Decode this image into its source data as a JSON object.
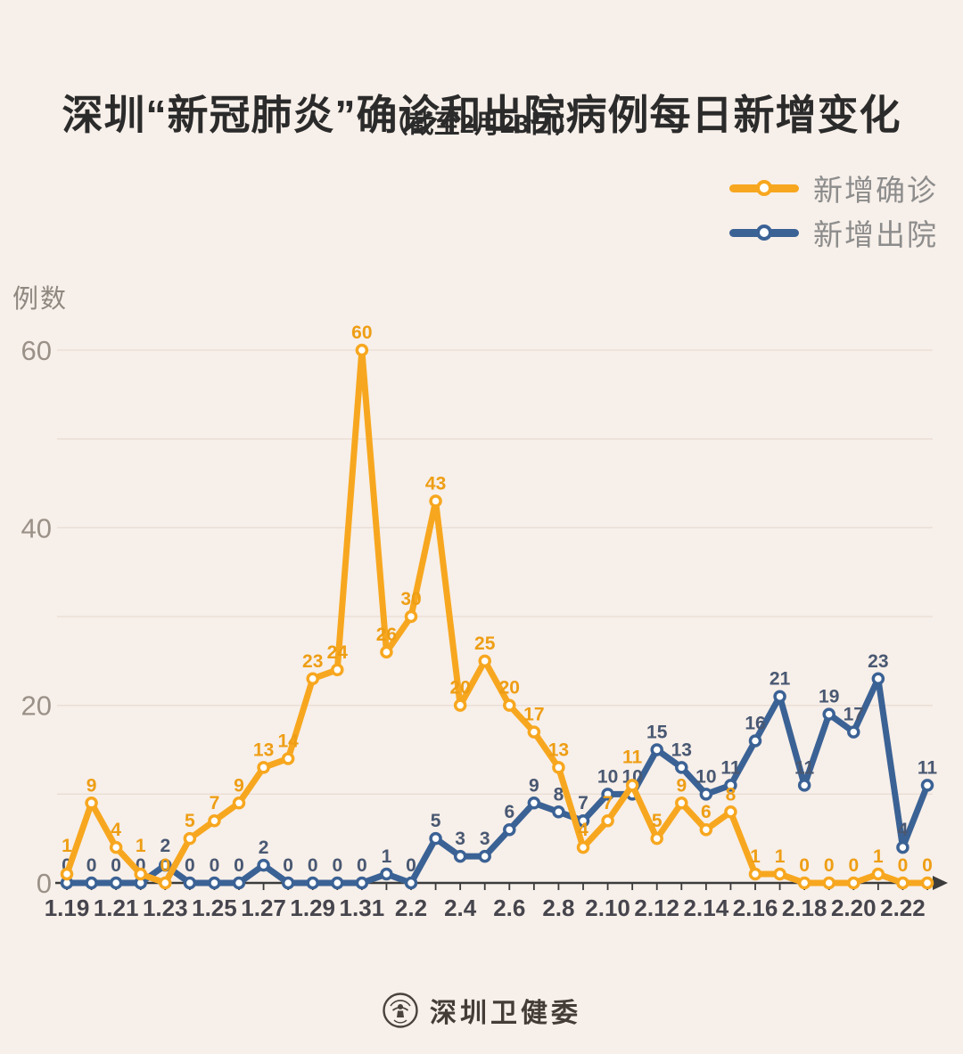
{
  "colors": {
    "background": "#F7EFE9",
    "grid": "#E9DED4",
    "axis": "#3C3C3C",
    "y_tick_label": "#9A9188",
    "x_tick_label": "#46454D"
  },
  "chart_data": {
    "type": "line",
    "title": "深圳“新冠肺炎”确诊和出院病例每日新增变化",
    "subtitle": "（截至2月23日）",
    "ylabel": "例数",
    "xlabel": "",
    "ylim": [
      0,
      60
    ],
    "yticks": [
      0,
      20,
      40,
      60
    ],
    "grid_step": 10,
    "x_label_interval": 2,
    "legend_position": "top-right",
    "categories": [
      "1.19",
      "1.20",
      "1.21",
      "1.22",
      "1.23",
      "1.24",
      "1.25",
      "1.26",
      "1.27",
      "1.28",
      "1.29",
      "1.30",
      "1.31",
      "2.1",
      "2.2",
      "2.3",
      "2.4",
      "2.5",
      "2.6",
      "2.7",
      "2.8",
      "2.9",
      "2.10",
      "2.11",
      "2.12",
      "2.13",
      "2.14",
      "2.15",
      "2.16",
      "2.17",
      "2.18",
      "2.19",
      "2.20",
      "2.21",
      "2.22",
      "2.23"
    ],
    "series": [
      {
        "name": "新增确诊",
        "color": "#F7A71F",
        "label_color": "#EE9E15",
        "values": [
          1,
          9,
          4,
          1,
          0,
          5,
          7,
          9,
          13,
          14,
          23,
          24,
          60,
          26,
          30,
          43,
          20,
          25,
          20,
          17,
          13,
          4,
          7,
          11,
          5,
          9,
          6,
          8,
          1,
          1,
          0,
          0,
          0,
          1,
          0,
          0
        ]
      },
      {
        "name": "新增出院",
        "color": "#3B6295",
        "label_color": "#495872",
        "values": [
          0,
          0,
          0,
          0,
          2,
          0,
          0,
          0,
          2,
          0,
          0,
          0,
          0,
          1,
          0,
          5,
          3,
          3,
          6,
          9,
          8,
          7,
          10,
          10,
          15,
          13,
          10,
          11,
          16,
          21,
          11,
          19,
          17,
          23,
          4,
          11
        ]
      }
    ]
  },
  "footer": {
    "source": "深圳卫健委",
    "logo": "health-commission-seal-icon"
  }
}
